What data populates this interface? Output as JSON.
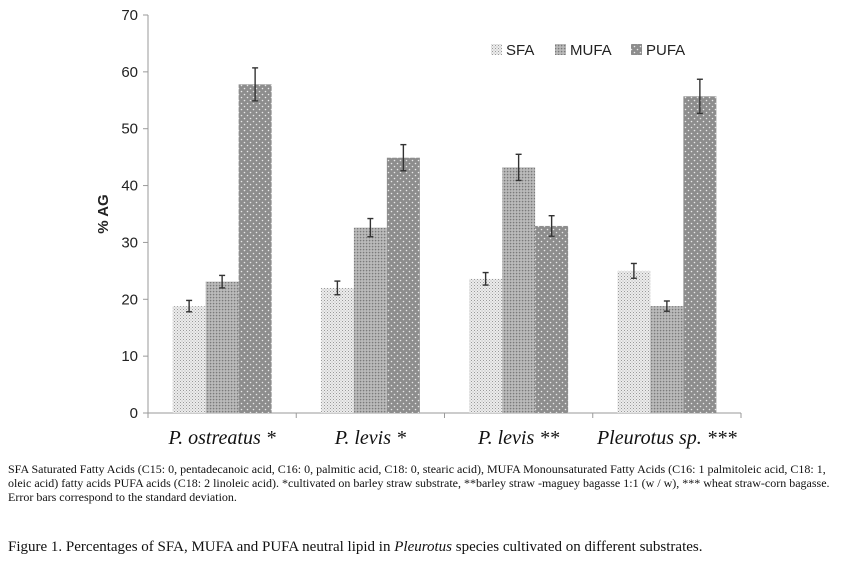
{
  "chart_data": {
    "type": "bar",
    "categories": [
      "P. ostreatus *",
      "P. levis *",
      "P. levis **",
      "Pleurotus sp. ***"
    ],
    "series": [
      {
        "name": "SFA",
        "values": [
          18.8,
          22.0,
          23.6,
          25.0
        ],
        "errors": [
          1.0,
          1.2,
          1.1,
          1.3
        ],
        "pattern": "sfa"
      },
      {
        "name": "MUFA",
        "values": [
          23.1,
          32.6,
          43.2,
          18.8
        ],
        "errors": [
          1.1,
          1.6,
          2.3,
          0.9
        ],
        "pattern": "mufa"
      },
      {
        "name": "PUFA",
        "values": [
          57.8,
          44.9,
          32.9,
          55.7
        ],
        "errors": [
          2.9,
          2.3,
          1.8,
          3.0
        ],
        "pattern": "pufa"
      }
    ],
    "title": "",
    "xlabel": "",
    "ylabel": "% AG",
    "ylim": [
      0,
      70
    ],
    "yticks": [
      0,
      10,
      20,
      30,
      40,
      50,
      60,
      70
    ],
    "legend": "top-right",
    "grid": false,
    "colors": {
      "sfa_bg": "#e6e6e6",
      "mufa_bg": "#a9a9a9",
      "pufa_bg": "#8f8f8f",
      "axis": "#9a9a9a",
      "error": "#333333"
    }
  },
  "footnote": "SFA Saturated Fatty Acids (C15: 0, pentadecanoic acid, C16: 0, palmitic acid, C18: 0, stearic acid), MUFA Monounsaturated Fatty Acids (C16: 1 palmitoleic acid, C18: 1, oleic acid) fatty acids PUFA acids (C18: 2 linoleic acid). *cultivated on barley straw substrate, **barley straw -maguey bagasse 1:1 (w / w), *** wheat straw-corn bagasse. Error bars correspond to the standard deviation.",
  "figure_caption": {
    "prefix": "Figure 1. Percentages of SFA, MUFA and PUFA neutral lipid in ",
    "genus": "Pleurotus",
    "suffix": " species cultivated on different substrates."
  }
}
